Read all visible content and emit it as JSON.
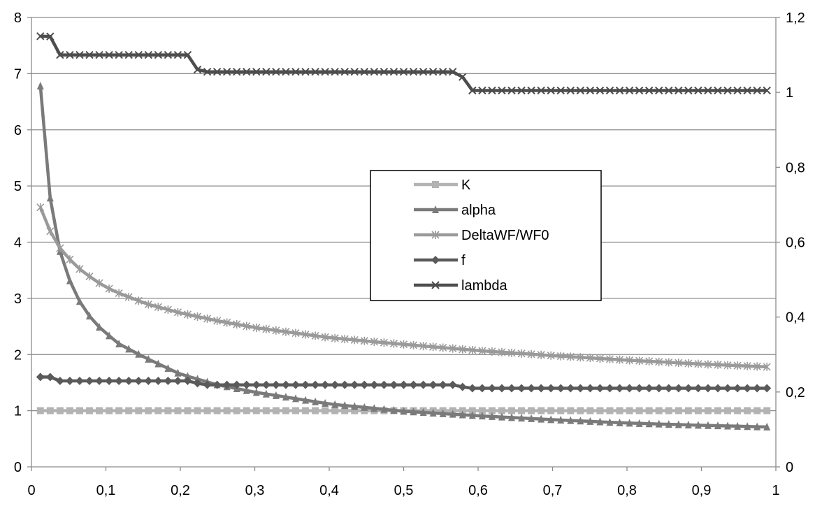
{
  "chart_data": {
    "type": "line",
    "title": "",
    "xlabel": "",
    "ylabel": "",
    "y2label": "",
    "xlim": [
      0,
      1
    ],
    "ylim": [
      0,
      8
    ],
    "y2lim": [
      0,
      1.2
    ],
    "x_ticks": [
      "0",
      "0,1",
      "0,2",
      "0,3",
      "0,4",
      "0,5",
      "0,6",
      "0,7",
      "0,8",
      "0,9",
      "1"
    ],
    "y_ticks": [
      "0",
      "1",
      "2",
      "3",
      "4",
      "5",
      "6",
      "7",
      "8"
    ],
    "y2_ticks": [
      "0",
      "0,2",
      "0,4",
      "0,6",
      "0,8",
      "1",
      "1,2"
    ],
    "grid": "horizontal",
    "legend_placement": "center-right",
    "x_range": {
      "start": 0.012,
      "end": 0.988,
      "count": 75
    },
    "series": [
      {
        "name": "K",
        "axis": "left",
        "marker": "square",
        "color": "#b3b3b3",
        "points": [
          [
            0.012,
            1.0
          ],
          [
            0.988,
            1.0
          ]
        ]
      },
      {
        "name": "alpha",
        "axis": "left",
        "marker": "triangle",
        "color": "#7a7a7a",
        "points": [
          [
            0.012,
            6.78
          ],
          [
            0.025,
            4.8
          ],
          [
            0.038,
            3.85
          ],
          [
            0.051,
            3.33
          ],
          [
            0.064,
            2.96
          ],
          [
            0.077,
            2.7
          ],
          [
            0.09,
            2.5
          ],
          [
            0.103,
            2.35
          ],
          [
            0.116,
            2.2
          ],
          [
            0.155,
            1.93
          ],
          [
            0.2,
            1.65
          ],
          [
            0.25,
            1.46
          ],
          [
            0.3,
            1.33
          ],
          [
            0.4,
            1.12
          ],
          [
            0.5,
            0.99
          ],
          [
            0.6,
            0.91
          ],
          [
            0.7,
            0.84
          ],
          [
            0.8,
            0.78
          ],
          [
            0.9,
            0.74
          ],
          [
            0.988,
            0.71
          ]
        ]
      },
      {
        "name": "DeltaWF/WF0",
        "axis": "left",
        "marker": "asterisk",
        "color": "#9a9a9a",
        "points": [
          [
            0.012,
            4.62
          ],
          [
            0.025,
            4.2
          ],
          [
            0.038,
            3.9
          ],
          [
            0.051,
            3.7
          ],
          [
            0.064,
            3.53
          ],
          [
            0.077,
            3.4
          ],
          [
            0.09,
            3.28
          ],
          [
            0.103,
            3.18
          ],
          [
            0.116,
            3.1
          ],
          [
            0.155,
            2.9
          ],
          [
            0.2,
            2.74
          ],
          [
            0.25,
            2.6
          ],
          [
            0.3,
            2.48
          ],
          [
            0.4,
            2.3
          ],
          [
            0.5,
            2.18
          ],
          [
            0.6,
            2.07
          ],
          [
            0.7,
            1.98
          ],
          [
            0.8,
            1.9
          ],
          [
            0.9,
            1.83
          ],
          [
            0.988,
            1.78
          ]
        ]
      },
      {
        "name": "f",
        "axis": "left",
        "marker": "diamond",
        "color": "#5a5a5a",
        "points": [
          [
            0.012,
            1.6
          ],
          [
            0.025,
            1.6
          ],
          [
            0.038,
            1.53
          ],
          [
            0.2,
            1.53
          ],
          [
            0.22,
            1.53
          ],
          [
            0.225,
            1.46
          ],
          [
            0.57,
            1.46
          ],
          [
            0.585,
            1.4
          ],
          [
            0.988,
            1.4
          ]
        ]
      },
      {
        "name": "lambda",
        "axis": "right",
        "marker": "x",
        "color": "#4d4d4d",
        "points": [
          [
            0.012,
            1.15
          ],
          [
            0.025,
            1.15
          ],
          [
            0.038,
            1.1
          ],
          [
            0.21,
            1.1
          ],
          [
            0.225,
            1.055
          ],
          [
            0.575,
            1.055
          ],
          [
            0.59,
            1.005
          ],
          [
            0.988,
            1.005
          ]
        ]
      }
    ]
  }
}
